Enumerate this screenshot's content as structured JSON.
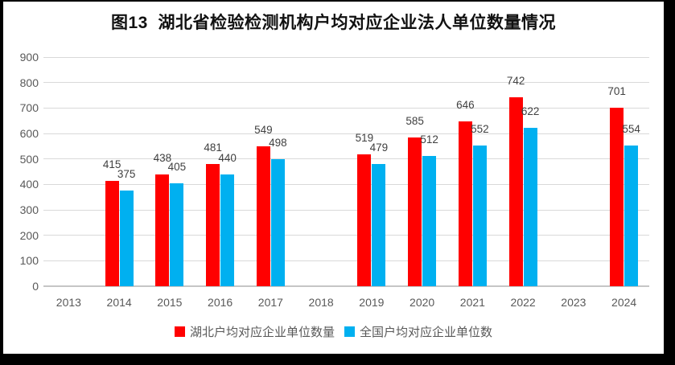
{
  "chart_data": {
    "type": "bar",
    "title": "图13  湖北省检验检测机构户均对应企业法人单位数量情况",
    "categories": [
      "2013",
      "2014",
      "2015",
      "2016",
      "2017",
      "2018",
      "2019",
      "2020",
      "2021",
      "2022",
      "2023",
      "2024"
    ],
    "series": [
      {
        "name": "湖北户均对应企业单位数量",
        "color": "#ff0000",
        "values": [
          null,
          415,
          438,
          481,
          549,
          null,
          519,
          585,
          646,
          742,
          null,
          701
        ]
      },
      {
        "name": "全国户均对应企业单位数",
        "color": "#00b0f0",
        "values": [
          null,
          375,
          405,
          440,
          498,
          null,
          479,
          512,
          552,
          622,
          null,
          554
        ]
      }
    ],
    "ylim": [
      0,
      900
    ],
    "ytick_step": 100,
    "yticks": [
      "0",
      "100",
      "200",
      "300",
      "400",
      "500",
      "600",
      "700",
      "800",
      "900"
    ],
    "grid": true,
    "data_labels": true,
    "legend_position": "bottom"
  },
  "colors": {
    "grid": "#d9d9d9",
    "axis_text": "#595959",
    "data_label_text": "#404040",
    "frame": "#000000",
    "background": "#ffffff"
  }
}
